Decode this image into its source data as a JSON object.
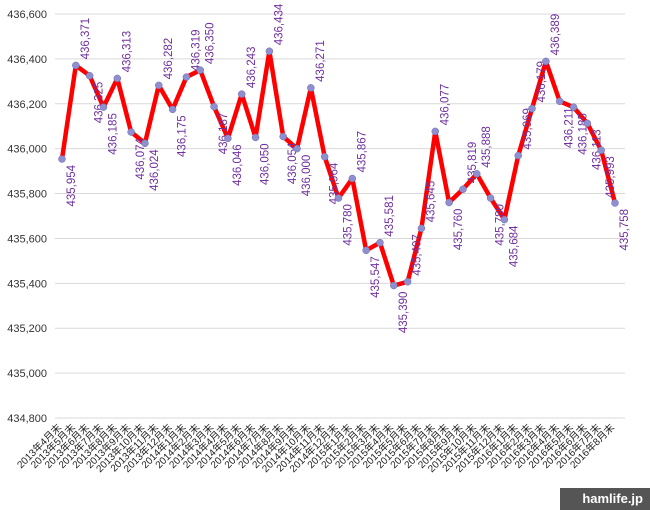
{
  "chart_data": {
    "type": "line",
    "categories": [
      "2013年4月末",
      "2013年5月末",
      "2013年6月末",
      "2013年7月末",
      "2013年8月末",
      "2013年9月末",
      "2013年10月末",
      "2013年11月末",
      "2013年12月末",
      "2014年1月末",
      "2014年2月末",
      "2014年3月末",
      "2014年4月末",
      "2014年5月末",
      "2014年6月末",
      "2014年7月末",
      "2014年8月末",
      "2014年9月末",
      "2014年10月末",
      "2014年11月末",
      "2014年12月末",
      "2015年1月末",
      "2015年2月末",
      "2015年3月末",
      "2015年4月末",
      "2015年5月末",
      "2015年6月末",
      "2015年7月末",
      "2015年8月末",
      "2015年9月末",
      "2015年10月末",
      "2015年11月末",
      "2015年12月末",
      "2016年1月末",
      "2016年2月末",
      "2016年3月末",
      "2016年4月末",
      "2016年5月末",
      "2016年6月末",
      "2016年7月末",
      "2016年8月末"
    ],
    "series": [
      {
        "name": null,
        "color": "#ff0000",
        "marker_color": "#8f8fcf",
        "label_color": "#7030a0",
        "values": [
          435954,
          436371,
          436325,
          436185,
          436313,
          436074,
          436024,
          436282,
          436175,
          436319,
          436350,
          436187,
          436046,
          436243,
          436050,
          436434,
          436054,
          436000,
          436271,
          435964,
          435780,
          435867,
          435547,
          435581,
          435390,
          435407,
          435645,
          436077,
          435760,
          435819,
          435888,
          435780,
          435684,
          435969,
          436179,
          436389,
          436211,
          436185,
          436113,
          435993,
          435758
        ],
        "value_labels": [
          "435,954",
          "436,371",
          "436,325",
          "436,185",
          "436,313",
          "436,074",
          "436,024",
          "436,282",
          "436,175",
          "436,319",
          "436,350",
          "436,187",
          "436,046",
          "436,243",
          "436,050",
          "436,434",
          "436,054",
          "436,000",
          "436,271",
          "435,964",
          "435,780",
          "435,867",
          "435,547",
          "435,581",
          "435,390",
          "435,407",
          "435,645",
          "436,077",
          "435,760",
          "435,819",
          "435,888",
          "435,780",
          "435,684",
          "435,969",
          "436,179",
          "436,389",
          "436,211",
          "436,185",
          "436,113",
          "435,993",
          "435,758"
        ]
      }
    ],
    "ylim": [
      434800,
      436600
    ],
    "yticks": [
      {
        "value": 434800,
        "label": "434,800"
      },
      {
        "value": 435000,
        "label": "435,000"
      },
      {
        "value": 435200,
        "label": "435,200"
      },
      {
        "value": 435400,
        "label": "435,400"
      },
      {
        "value": 435600,
        "label": "435,600"
      },
      {
        "value": 435800,
        "label": "435,800"
      },
      {
        "value": 436000,
        "label": "436,000"
      },
      {
        "value": 436200,
        "label": "436,200"
      },
      {
        "value": 436400,
        "label": "436,400"
      },
      {
        "value": 436600,
        "label": "436,600"
      }
    ],
    "grid": true,
    "watermark": "hamlife.jp"
  }
}
